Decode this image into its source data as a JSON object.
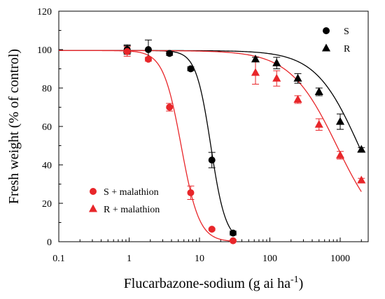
{
  "chart_data": {
    "type": "scatter",
    "xlabel": "Flucarbazone-sodium (g ai ha",
    "xlabel_superscript": "-1",
    "ylabel": "Fresh weight (% of control)",
    "xscale": "log",
    "xlim": [
      0.1,
      2500
    ],
    "ylim": [
      0,
      120
    ],
    "xticks": [
      0.1,
      1,
      10,
      100,
      1000
    ],
    "xtick_labels": [
      "0.1",
      "1",
      "10",
      "100",
      "1000"
    ],
    "yticks": [
      0,
      20,
      40,
      60,
      80,
      100,
      120
    ],
    "ytick_labels": [
      "0",
      "20",
      "40",
      "60",
      "80",
      "100",
      "120"
    ],
    "grid": false,
    "series": [
      {
        "name": "S",
        "color": "#000000",
        "marker": "circle",
        "legend_position": "top-right",
        "x": [
          0.9375,
          1.875,
          3.75,
          7.5,
          15,
          30
        ],
        "y": [
          100,
          100,
          98,
          90,
          42.5,
          4.5
        ],
        "yerr": [
          2.5,
          5,
          1,
          1,
          4,
          1
        ],
        "fit": {
          "c": 0,
          "d": 99.5,
          "e": 14.5,
          "b": 4.1
        }
      },
      {
        "name": "R",
        "color": "#000000",
        "marker": "triangle",
        "legend_position": "top-right",
        "x": [
          0.9375,
          62.5,
          125,
          250,
          500,
          1000,
          2000
        ],
        "y": [
          100,
          95,
          93,
          85,
          78,
          62.5,
          48
        ],
        "yerr": [
          2,
          1,
          3,
          2.5,
          2,
          4,
          1
        ],
        "fit": {
          "c": 0,
          "d": 99.5,
          "e": 1850,
          "b": 1.4
        }
      },
      {
        "name": "S + malathion",
        "color": "#e8262a",
        "marker": "circle",
        "legend_position": "bottom-left",
        "x": [
          0.9375,
          1.875,
          3.75,
          7.5,
          15,
          30
        ],
        "y": [
          99,
          95,
          70,
          25.5,
          6.5,
          0.5
        ],
        "yerr": [
          2.5,
          1,
          2,
          3.5,
          0.5,
          0.5
        ],
        "fit": {
          "c": 0,
          "d": 99.5,
          "e": 5.5,
          "b": 3.4
        }
      },
      {
        "name": "R + malathion",
        "color": "#e8262a",
        "marker": "triangle",
        "legend_position": "bottom-left",
        "x": [
          62.5,
          125,
          250,
          500,
          1000,
          2000
        ],
        "y": [
          88,
          85,
          74,
          61,
          45,
          32
        ],
        "yerr": [
          6,
          4,
          2,
          3,
          2,
          1
        ],
        "fit": {
          "c": 0,
          "d": 99.5,
          "e": 900,
          "b": 1.3
        }
      }
    ]
  }
}
